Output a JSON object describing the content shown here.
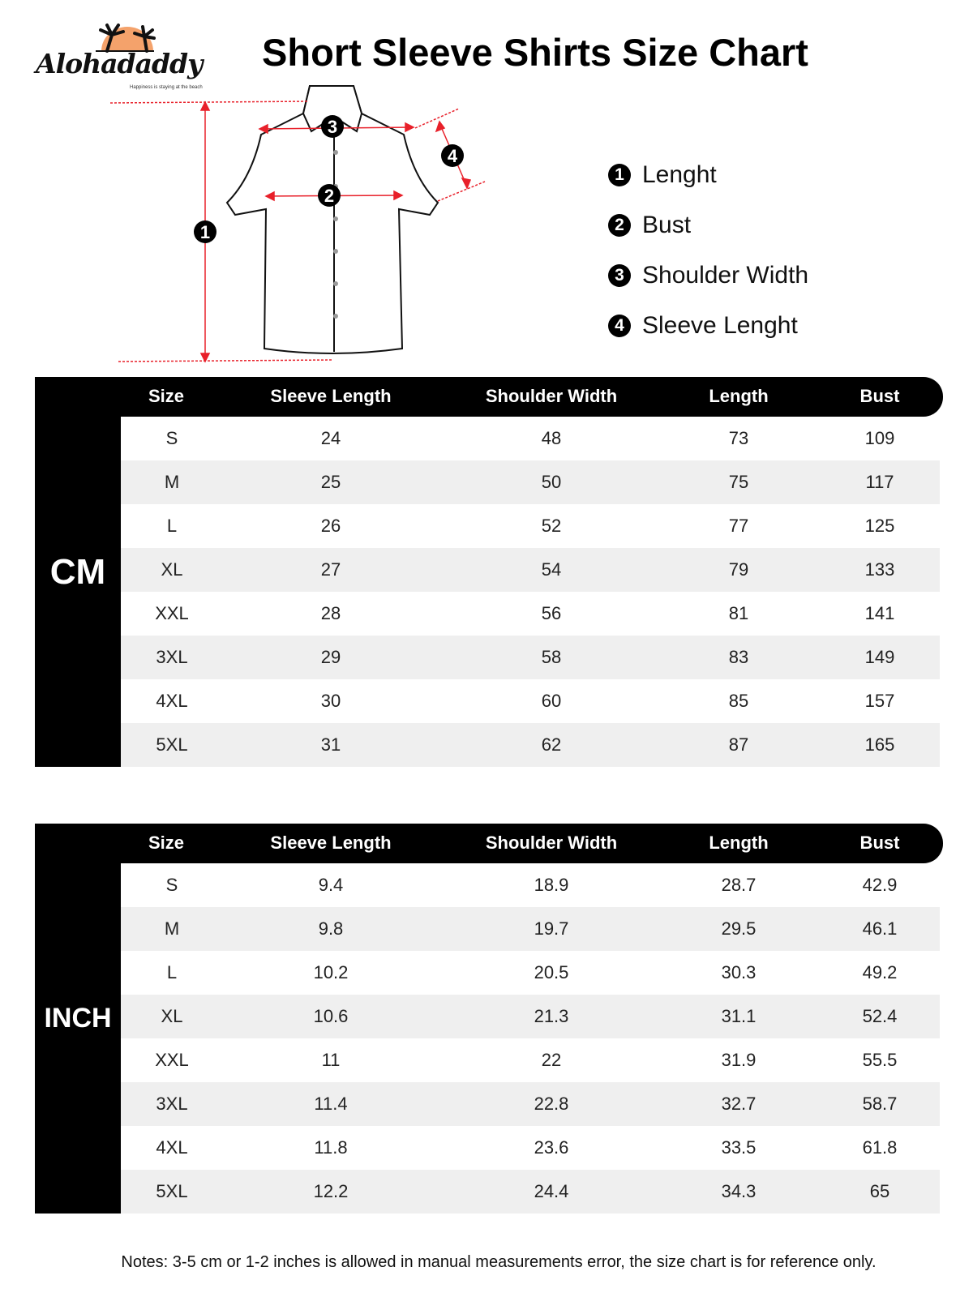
{
  "brand": {
    "name": "Alohadaddy",
    "tagline": "Happiness is staying at the beach",
    "sun_color": "#f4a26b"
  },
  "title": "Short Sleeve Shirts Size Chart",
  "diagram": {
    "markers": [
      "1",
      "2",
      "3",
      "4"
    ],
    "arrow_color": "#e8202a"
  },
  "legend": [
    {
      "num": "1",
      "label": "Lenght"
    },
    {
      "num": "2",
      "label": "Bust"
    },
    {
      "num": "3",
      "label": "Shoulder Width"
    },
    {
      "num": "4",
      "label": "Sleeve Lenght"
    }
  ],
  "columns": [
    "Size",
    "Sleeve Length",
    "Shoulder Width",
    "Length",
    "Bust"
  ],
  "tables": [
    {
      "unit": "CM",
      "rows": [
        [
          "S",
          "24",
          "48",
          "73",
          "109"
        ],
        [
          "M",
          "25",
          "50",
          "75",
          "117"
        ],
        [
          "L",
          "26",
          "52",
          "77",
          "125"
        ],
        [
          "XL",
          "27",
          "54",
          "79",
          "133"
        ],
        [
          "XXL",
          "28",
          "56",
          "81",
          "141"
        ],
        [
          "3XL",
          "29",
          "58",
          "83",
          "149"
        ],
        [
          "4XL",
          "30",
          "60",
          "85",
          "157"
        ],
        [
          "5XL",
          "31",
          "62",
          "87",
          "165"
        ]
      ]
    },
    {
      "unit": "INCH",
      "rows": [
        [
          "S",
          "9.4",
          "18.9",
          "28.7",
          "42.9"
        ],
        [
          "M",
          "9.8",
          "19.7",
          "29.5",
          "46.1"
        ],
        [
          "L",
          "10.2",
          "20.5",
          "30.3",
          "49.2"
        ],
        [
          "XL",
          "10.6",
          "21.3",
          "31.1",
          "52.4"
        ],
        [
          "XXL",
          "11",
          "22",
          "31.9",
          "55.5"
        ],
        [
          "3XL",
          "11.4",
          "22.8",
          "32.7",
          "58.7"
        ],
        [
          "4XL",
          "11.8",
          "23.6",
          "33.5",
          "61.8"
        ],
        [
          "5XL",
          "12.2",
          "24.4",
          "34.3",
          "65"
        ]
      ]
    }
  ],
  "notes": "Notes: 3-5 cm or 1-2 inches is allowed in manual measurements error, the size chart is for reference only."
}
